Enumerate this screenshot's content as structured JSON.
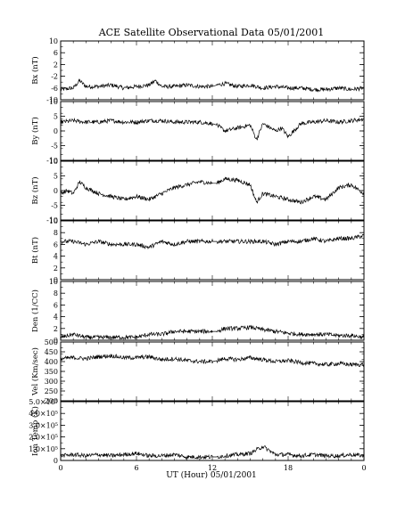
{
  "chart_data": {
    "type": "line",
    "title": "ACE Satellite Observational Data   05/01/2001",
    "xlabel": "UT (Hour)   05/01/2001",
    "x_ticks": [
      "0",
      "6",
      "12",
      "18",
      "0"
    ],
    "x_range": [
      0,
      24
    ],
    "data_gap_hours": [
      12.0,
      12.35
    ],
    "panels": [
      {
        "id": "bx",
        "ylabel": "Bx (nT)",
        "ylim": [
          -10,
          10
        ],
        "y_ticks": [
          {
            "v": 10,
            "t": "10"
          },
          {
            "v": 6,
            "t": "6"
          },
          {
            "v": 2,
            "t": "2"
          },
          {
            "v": -2,
            "t": "-2"
          },
          {
            "v": -6,
            "t": "-6"
          },
          {
            "v": -10,
            "t": "-10"
          }
        ],
        "series": [
          {
            "x": [
              0,
              1,
              1.5,
              2,
              3,
              4,
              5,
              6,
              7,
              7.5,
              8,
              9,
              10,
              11,
              12,
              12.35,
              13,
              14,
              15,
              16,
              17,
              18,
              19,
              20,
              21,
              22,
              23,
              24
            ],
            "y": [
              -6.5,
              -6,
              -3.5,
              -5.5,
              -5.5,
              -5,
              -6,
              -5.5,
              -5,
              -3.5,
              -5.5,
              -5.5,
              -5,
              -5.5,
              -5.5,
              -5,
              -4.5,
              -5.5,
              -5,
              -6,
              -5.5,
              -6,
              -6,
              -6.5,
              -6.5,
              -6,
              -6.5,
              -6
            ]
          }
        ]
      },
      {
        "id": "by",
        "ylabel": "By (nT)",
        "ylim": [
          -10,
          10
        ],
        "y_ticks": [
          {
            "v": 10,
            "t": "10"
          },
          {
            "v": 5,
            "t": "5"
          },
          {
            "v": 0,
            "t": "0"
          },
          {
            "v": -5,
            "t": "-5"
          },
          {
            "v": -10,
            "t": "-10"
          }
        ],
        "series": [
          {
            "x": [
              0,
              1,
              2,
              3,
              4,
              5,
              6,
              7,
              8,
              9,
              10,
              11,
              12,
              12.35,
              13,
              14,
              15,
              15.5,
              16,
              17,
              17.5,
              18,
              19,
              20,
              21,
              22,
              23,
              24
            ],
            "y": [
              3,
              3.5,
              3,
              3,
              3.5,
              3,
              3,
              3.5,
              3.5,
              3,
              3,
              3,
              2.5,
              2,
              0,
              1,
              2,
              -3,
              2.5,
              0,
              1,
              -2,
              2.5,
              3,
              3.5,
              3,
              3.5,
              4
            ]
          }
        ]
      },
      {
        "id": "bz",
        "ylabel": "Bz (nT)",
        "ylim": [
          -10,
          10
        ],
        "y_ticks": [
          {
            "v": 10,
            "t": "10"
          },
          {
            "v": 5,
            "t": "5"
          },
          {
            "v": 0,
            "t": "0"
          },
          {
            "v": -5,
            "t": "-5"
          },
          {
            "v": -10,
            "t": "-10"
          }
        ],
        "series": [
          {
            "x": [
              0,
              0.5,
              1,
              1.5,
              2,
              3,
              4,
              5,
              6,
              7,
              8,
              9,
              10,
              11,
              12,
              12.35,
              13,
              14,
              15,
              15.5,
              16,
              17,
              18,
              19,
              20,
              21,
              22,
              23,
              24
            ],
            "y": [
              -1,
              0,
              -1,
              3,
              1,
              -1,
              -2,
              -3,
              -2,
              -3,
              -1,
              1,
              2,
              3,
              2.5,
              2.5,
              4,
              3.5,
              2,
              -4,
              -1,
              -2,
              -3,
              -4,
              -2,
              -3,
              1,
              2,
              -1
            ]
          }
        ]
      },
      {
        "id": "bt",
        "ylabel": "Bt (nT)",
        "ylim": [
          0,
          10
        ],
        "y_ticks": [
          {
            "v": 10,
            "t": "10"
          },
          {
            "v": 8,
            "t": "8"
          },
          {
            "v": 6,
            "t": "6"
          },
          {
            "v": 4,
            "t": "4"
          },
          {
            "v": 2,
            "t": "2"
          },
          {
            "v": 0,
            "t": "0"
          }
        ],
        "series": [
          {
            "x": [
              0,
              1,
              2,
              3,
              4,
              5,
              6,
              7,
              8,
              9,
              10,
              11,
              12,
              12.35,
              13,
              14,
              15,
              16,
              17,
              18,
              19,
              20,
              21,
              22,
              23,
              24
            ],
            "y": [
              6.5,
              6.5,
              6,
              6.5,
              6,
              6,
              6,
              5.5,
              6.5,
              6,
              6.5,
              6.5,
              6.5,
              6.5,
              6.5,
              6.5,
              6.5,
              6.5,
              6,
              6.5,
              6.5,
              7,
              6.5,
              7,
              7,
              7.5
            ]
          }
        ]
      },
      {
        "id": "den",
        "ylabel": "Den (1/CC)",
        "ylim": [
          0,
          10
        ],
        "y_ticks": [
          {
            "v": 10,
            "t": "10"
          },
          {
            "v": 8,
            "t": "8"
          },
          {
            "v": 6,
            "t": "6"
          },
          {
            "v": 4,
            "t": "4"
          },
          {
            "v": 2,
            "t": "2"
          },
          {
            "v": 0,
            "t": "0"
          }
        ],
        "series": [
          {
            "x": [
              0,
              1,
              2,
              3,
              4,
              5,
              6,
              7,
              8,
              9,
              10,
              11,
              12,
              12.35,
              13,
              14,
              15,
              16,
              17,
              18,
              19,
              20,
              21,
              22,
              23,
              24
            ],
            "y": [
              0.5,
              1,
              0.5,
              0.5,
              0.5,
              0.5,
              0.5,
              1,
              1,
              1.5,
              1.5,
              1.5,
              1.5,
              1.5,
              2,
              2,
              2.2,
              1.8,
              1.5,
              1.2,
              1,
              1,
              1,
              0.8,
              0.8,
              0.5
            ]
          }
        ]
      },
      {
        "id": "vel",
        "ylabel": "Vel (Km/sec)",
        "ylim": [
          200,
          500
        ],
        "y_ticks": [
          {
            "v": 500,
            "t": "500"
          },
          {
            "v": 450,
            "t": "450"
          },
          {
            "v": 400,
            "t": "400"
          },
          {
            "v": 350,
            "t": "350"
          },
          {
            "v": 300,
            "t": "300"
          },
          {
            "v": 250,
            "t": "250"
          },
          {
            "v": 200,
            "t": "200"
          }
        ],
        "series": [
          {
            "x": [
              0,
              1,
              2,
              3,
              4,
              5,
              6,
              7,
              8,
              9,
              10,
              11,
              12,
              12.35,
              13,
              14,
              15,
              16,
              17,
              18,
              19,
              20,
              21,
              22,
              23,
              24
            ],
            "y": [
              415,
              420,
              415,
              425,
              430,
              420,
              420,
              425,
              410,
              415,
              405,
              400,
              400,
              405,
              415,
              410,
              420,
              410,
              400,
              405,
              395,
              390,
              385,
              390,
              385,
              385
            ]
          }
        ]
      },
      {
        "id": "temp",
        "ylabel": "Ion Temp (K)",
        "ylim": [
          0,
          500000
        ],
        "y_ticks": [
          {
            "v": 500000,
            "t": "5.0×10⁵"
          },
          {
            "v": 400000,
            "t": "4.0×10⁵"
          },
          {
            "v": 300000,
            "t": "3.0×10⁵"
          },
          {
            "v": 200000,
            "t": "2.0×10⁵"
          },
          {
            "v": 100000,
            "t": "1.0×10⁵"
          },
          {
            "v": 0,
            "t": "0"
          }
        ],
        "series": [
          {
            "x": [
              0,
              1,
              2,
              3,
              4,
              5,
              6,
              7,
              8,
              9,
              10,
              11,
              12,
              12.35,
              13,
              14,
              15,
              16,
              17,
              18,
              19,
              20,
              21,
              22,
              23,
              24
            ],
            "y": [
              40000,
              50000,
              40000,
              50000,
              40000,
              50000,
              60000,
              40000,
              40000,
              50000,
              30000,
              30000,
              30000,
              30000,
              40000,
              50000,
              60000,
              120000,
              50000,
              50000,
              40000,
              50000,
              40000,
              40000,
              50000,
              40000
            ]
          }
        ]
      }
    ]
  }
}
